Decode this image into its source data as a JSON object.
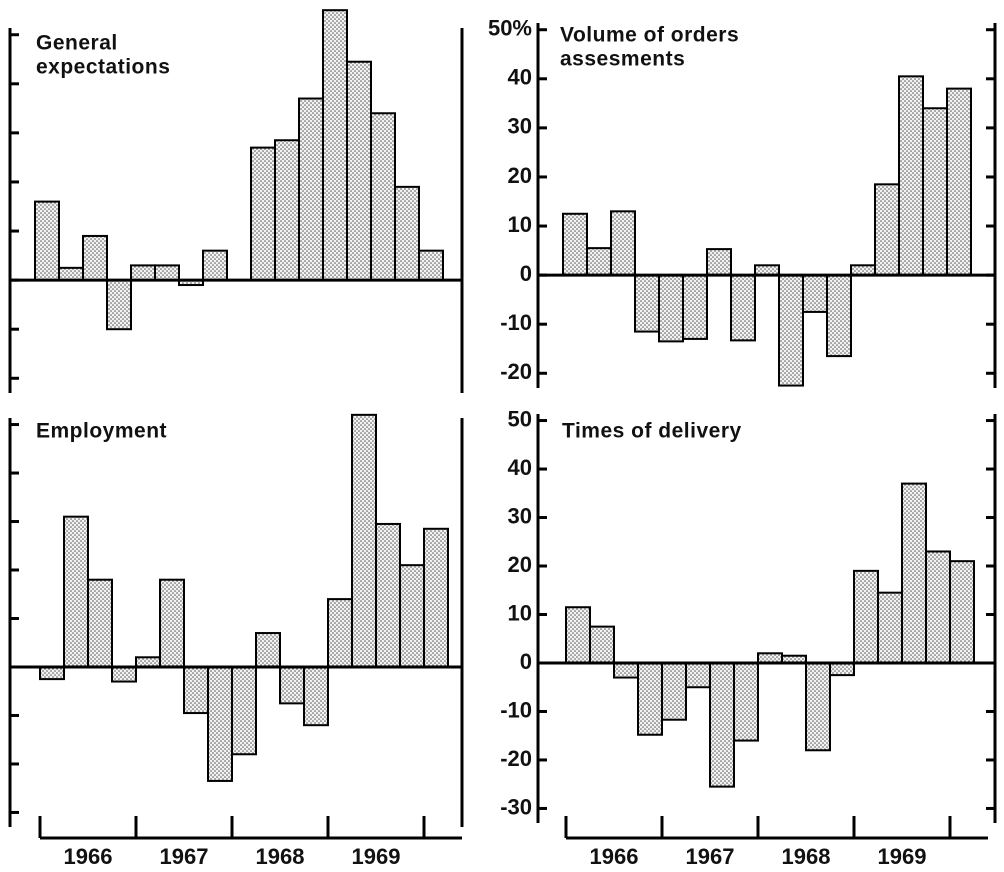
{
  "chart_data": [
    {
      "type": "bar",
      "title": [
        "General",
        "expectations"
      ],
      "values": [
        16,
        2.5,
        9,
        -10,
        3,
        3,
        -1,
        6,
        null,
        27,
        28.5,
        37,
        55,
        44.5,
        34,
        19,
        6
      ],
      "ylim": [
        -23,
        53
      ],
      "yticks": [
        -20,
        -10,
        0,
        10,
        20,
        30,
        40,
        50
      ]
    },
    {
      "type": "bar",
      "title": [
        "Volume of orders",
        "assesments"
      ],
      "values": [
        12.5,
        5.5,
        13,
        -11.5,
        -13.5,
        -13,
        5.3,
        -13.3,
        2,
        -22.5,
        -7.5,
        -16.5,
        2,
        18.5,
        40.5,
        34,
        38
      ],
      "ylim": [
        -23,
        53
      ],
      "yticks": [
        -20,
        -10,
        0,
        10,
        20,
        30,
        40,
        {
          "value": 50,
          "label": "50%"
        }
      ]
    },
    {
      "type": "bar",
      "title": [
        "Employment"
      ],
      "categories": [
        null,
        "1966",
        null,
        null,
        null,
        "1967",
        null,
        null,
        null,
        "1968",
        null,
        null,
        null,
        "1969",
        null,
        null,
        null
      ],
      "values": [
        -2.5,
        31,
        18,
        -3,
        2,
        18,
        -9.5,
        -23.5,
        -18,
        7,
        -7.5,
        -12,
        14,
        52,
        29.5,
        21,
        28.5
      ],
      "ylim": [
        -33,
        53
      ],
      "yticks": [
        -30,
        -20,
        -10,
        0,
        10,
        20,
        30,
        40,
        50
      ]
    },
    {
      "type": "bar",
      "title": [
        "Times of delivery"
      ],
      "categories": [
        null,
        "1966",
        null,
        null,
        null,
        "1967",
        null,
        null,
        null,
        "1968",
        null,
        null,
        null,
        "1969",
        null,
        null,
        null
      ],
      "values": [
        11.5,
        7.5,
        -3,
        -14.8,
        -11.7,
        -5,
        -25.5,
        -16,
        2,
        1.5,
        -18,
        -2.5,
        19,
        14.5,
        37,
        23,
        21
      ],
      "ylim": [
        -33,
        53
      ],
      "yticks": [
        -30,
        -20,
        -10,
        0,
        10,
        20,
        30,
        40,
        50
      ]
    }
  ]
}
